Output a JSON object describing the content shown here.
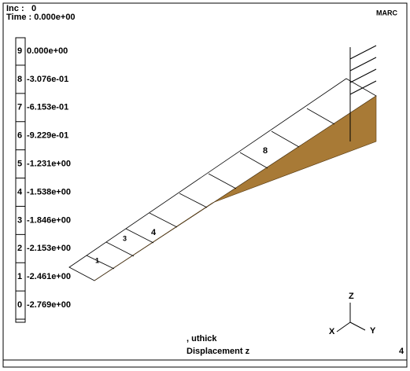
{
  "header": {
    "inc_label": "Inc :",
    "inc_value": "0",
    "time": "Time : 0.000e+00",
    "logo": "MARC"
  },
  "legend": {
    "entries": [
      {
        "index": "9",
        "value": "0.000e+00"
      },
      {
        "index": "8",
        "value": "-3.076e-01"
      },
      {
        "index": "7",
        "value": "-6.153e-01"
      },
      {
        "index": "6",
        "value": "-9.229e-01"
      },
      {
        "index": "5",
        "value": "-1.231e+00"
      },
      {
        "index": "4",
        "value": "-1.538e+00"
      },
      {
        "index": "3",
        "value": "-1.846e+00"
      },
      {
        "index": "2",
        "value": "-2.153e+00"
      },
      {
        "index": "1",
        "value": "-2.461e+00"
      },
      {
        "index": "0",
        "value": "-2.769e+00"
      }
    ]
  },
  "mesh_labels": [
    "1",
    "3",
    "4",
    "8"
  ],
  "axes": {
    "z": "Z",
    "x": "X",
    "y": "Y"
  },
  "footer": {
    "line1": ", uthick",
    "line2": "Displacement z",
    "index": "4"
  }
}
